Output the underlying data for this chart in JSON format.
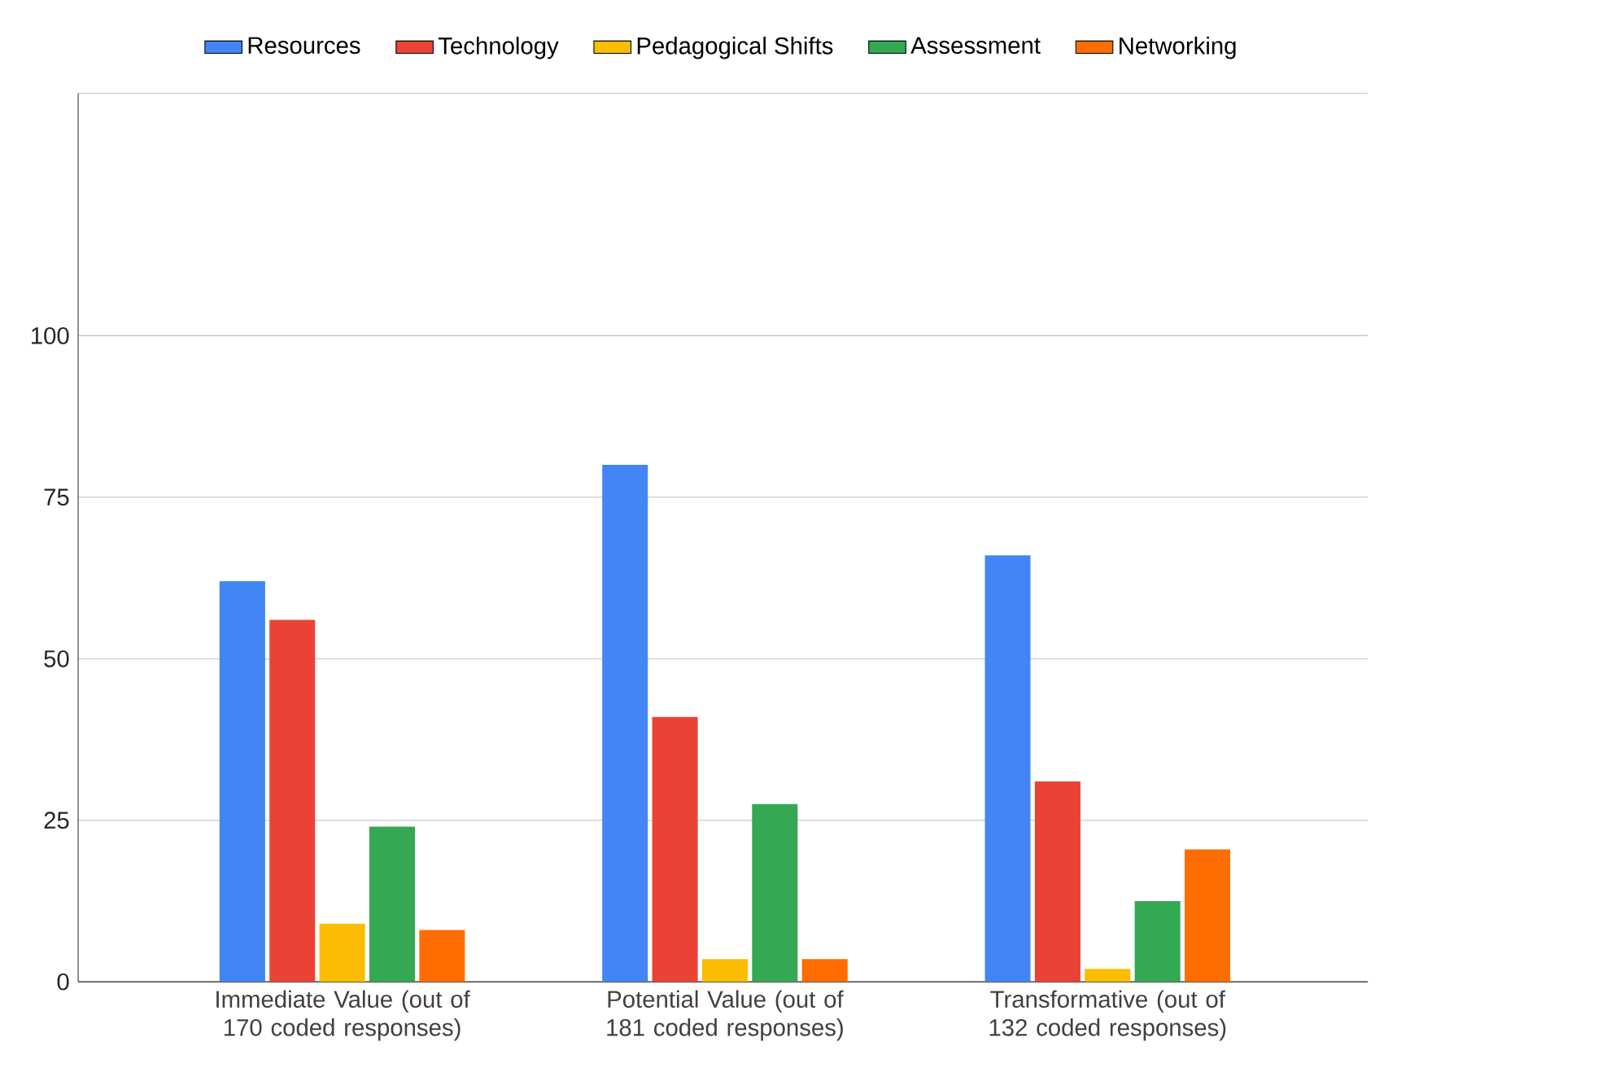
{
  "chart_data": {
    "type": "bar",
    "categories": [
      "Immediate Value (out of 170 coded responses)",
      "Potential Value (out of 181 coded responses)",
      "Transformative (out of 132 coded responses)"
    ],
    "series": [
      {
        "name": "Resources",
        "color": "#4285f4",
        "values": [
          62,
          80,
          66
        ]
      },
      {
        "name": "Technology",
        "color": "#ea4335",
        "values": [
          56,
          41,
          31
        ]
      },
      {
        "name": "Pedagogical Shifts",
        "color": "#fbbc04",
        "values": [
          9,
          3.5,
          2
        ]
      },
      {
        "name": "Assessment",
        "color": "#34a853",
        "values": [
          24,
          27.5,
          12.5
        ]
      },
      {
        "name": "Networking",
        "color": "#ff6d01",
        "values": [
          8,
          3.5,
          20.5
        ]
      }
    ],
    "ylim": [
      0,
      137.5
    ],
    "yticks": [
      0,
      25,
      50,
      75,
      100
    ],
    "grid": "y",
    "legend": "top"
  }
}
